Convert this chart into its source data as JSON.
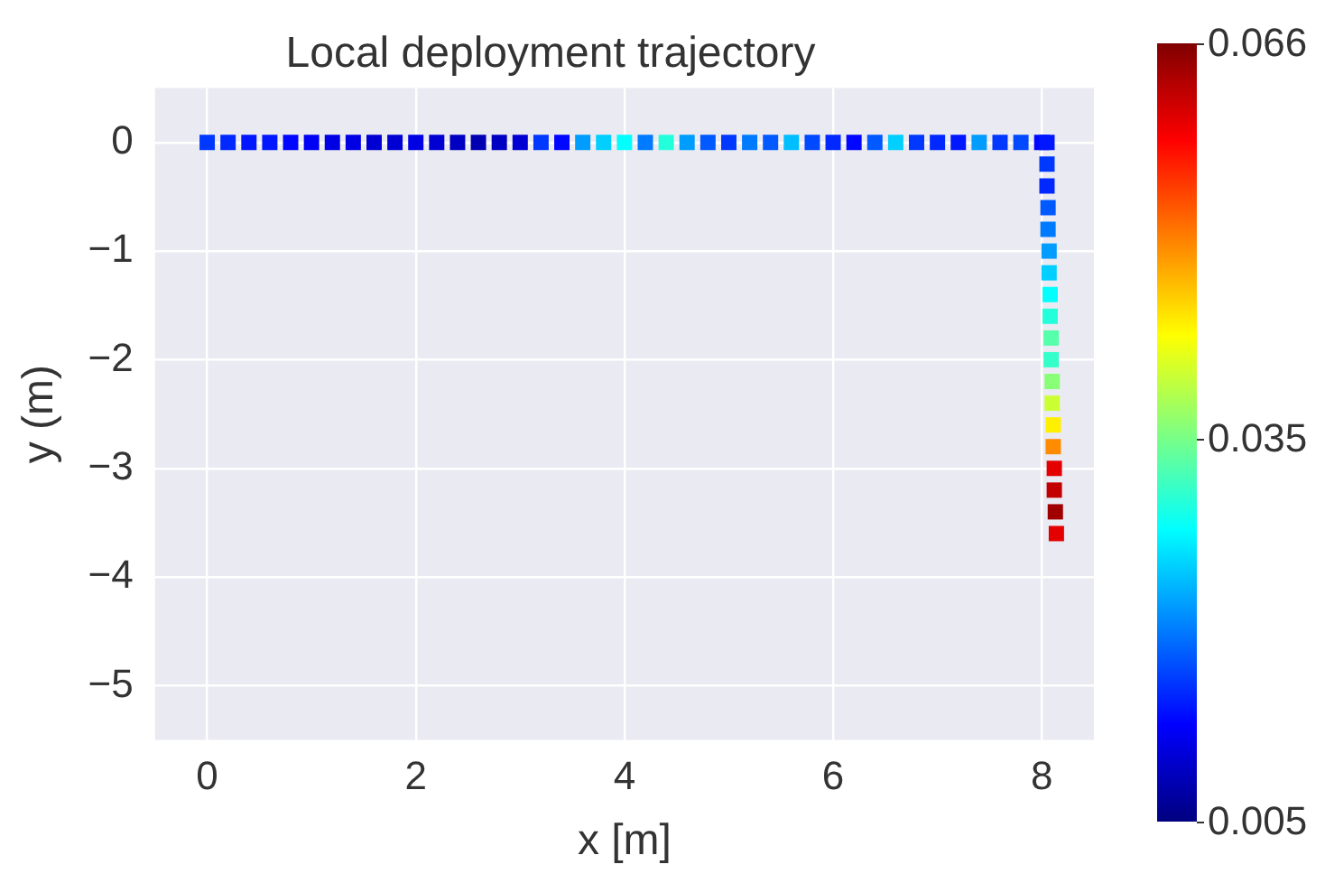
{
  "chart_data": {
    "type": "scatter",
    "title": "Local deployment trajectory",
    "xlabel": "x [m]",
    "ylabel": "y (m)",
    "x": [
      0,
      0.2,
      0.4,
      0.6,
      0.8,
      1.0,
      1.2,
      1.4,
      1.6,
      1.8,
      2.0,
      2.2,
      2.4,
      2.6,
      2.8,
      3.0,
      3.2,
      3.4,
      3.6,
      3.8,
      4.0,
      4.2,
      4.4,
      4.6,
      4.8,
      5.0,
      5.2,
      5.4,
      5.6,
      5.8,
      6.0,
      6.2,
      6.4,
      6.6,
      6.8,
      7.0,
      7.2,
      7.4,
      7.6,
      7.8,
      8.0,
      8.05,
      8.05,
      8.05,
      8.06,
      8.06,
      8.07,
      8.07,
      8.08,
      8.08,
      8.09,
      8.09,
      8.1,
      8.1,
      8.11,
      8.11,
      8.12,
      8.12,
      8.13,
      8.14
    ],
    "values": [
      0,
      0,
      0,
      0,
      0,
      0,
      0,
      0,
      0,
      0,
      0,
      0,
      0,
      0,
      0,
      0,
      0,
      0,
      0,
      0,
      0,
      0,
      0,
      0,
      0,
      0,
      0,
      0,
      0,
      0,
      0,
      0,
      0,
      0,
      0,
      0,
      0,
      0,
      0,
      0,
      0,
      0,
      -0.2,
      -0.4,
      -0.6,
      -0.8,
      -1.0,
      -1.2,
      -1.4,
      -1.6,
      -1.8,
      -2.0,
      -2.2,
      -2.4,
      -2.6,
      -2.8,
      -3.0,
      -3.2,
      -3.4,
      -3.6
    ],
    "cvalues": [
      0.016,
      0.015,
      0.014,
      0.014,
      0.013,
      0.012,
      0.011,
      0.011,
      0.01,
      0.01,
      0.011,
      0.01,
      0.009,
      0.008,
      0.009,
      0.01,
      0.016,
      0.013,
      0.022,
      0.025,
      0.028,
      0.02,
      0.03,
      0.022,
      0.018,
      0.016,
      0.02,
      0.018,
      0.024,
      0.017,
      0.015,
      0.013,
      0.018,
      0.025,
      0.016,
      0.015,
      0.014,
      0.022,
      0.016,
      0.017,
      0.013,
      0.014,
      0.016,
      0.015,
      0.018,
      0.02,
      0.022,
      0.025,
      0.028,
      0.03,
      0.033,
      0.031,
      0.036,
      0.04,
      0.044,
      0.05,
      0.06,
      0.062,
      0.064,
      0.06
    ],
    "xlim": [
      -0.5,
      8.5
    ],
    "xticks": [
      0,
      2,
      4,
      6,
      8
    ],
    "ylim": [
      -5.5,
      0.5
    ],
    "yticks": [
      -5,
      -4,
      -3,
      -2,
      -1,
      0
    ],
    "clim": [
      0.005,
      0.066
    ],
    "cticks": [
      0.005,
      0.035,
      0.066
    ],
    "grid": true,
    "marker": "square"
  }
}
